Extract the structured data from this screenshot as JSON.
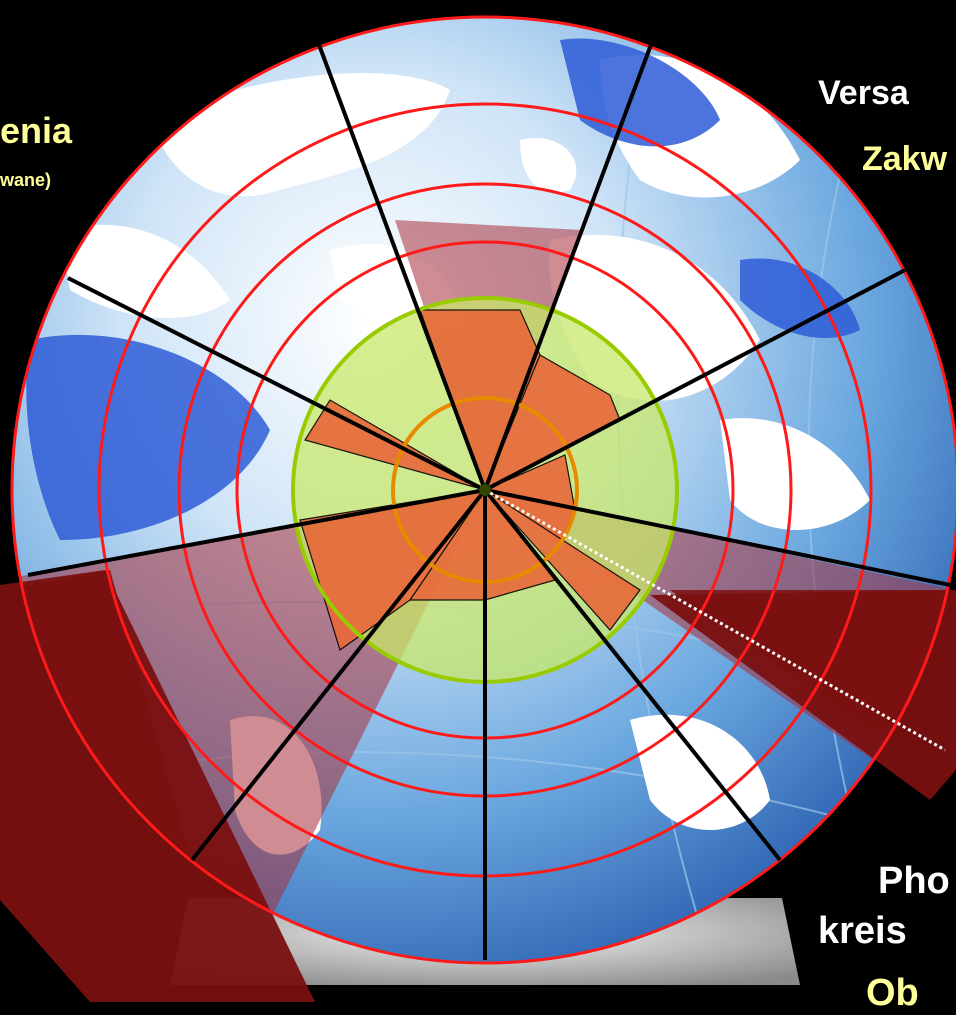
{
  "labels": {
    "top_left_main": "enia",
    "top_left_sub": "wane)",
    "top_right_1": "Versa",
    "top_right_2": "Zakw",
    "bottom_right_1": "Pho",
    "bottom_right_2": "kreis",
    "bottom_right_3": "Ob"
  },
  "colors": {
    "background": "#000000",
    "ring_red": "#ff1a1a",
    "ring_green": "#99cc00",
    "sector_red": "#c0392b",
    "inner_orange": "#e8683a",
    "light_green": "#c8e86a",
    "dark_red_band": "#7a1010",
    "text_white": "#ffffff",
    "text_yellow": "#ffff99"
  }
}
